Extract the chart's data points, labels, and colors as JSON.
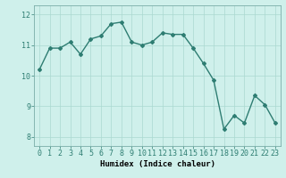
{
  "x": [
    0,
    1,
    2,
    3,
    4,
    5,
    6,
    7,
    8,
    9,
    10,
    11,
    12,
    13,
    14,
    15,
    16,
    17,
    18,
    19,
    20,
    21,
    22,
    23
  ],
  "y": [
    10.2,
    10.9,
    10.9,
    11.1,
    10.7,
    11.2,
    11.3,
    11.7,
    11.75,
    11.1,
    11.0,
    11.1,
    11.4,
    11.35,
    11.35,
    10.9,
    10.4,
    9.85,
    8.25,
    8.7,
    8.45,
    9.35,
    9.05,
    8.45
  ],
  "line_color": "#2e7d72",
  "marker": "D",
  "marker_size": 2,
  "linewidth": 1.0,
  "bg_color": "#cff0eb",
  "grid_color": "#aad8d0",
  "xlabel": "Humidex (Indice chaleur)",
  "xlim": [
    -0.5,
    23.5
  ],
  "ylim": [
    7.7,
    12.3
  ],
  "yticks": [
    8,
    9,
    10,
    11,
    12
  ],
  "xticks": [
    0,
    1,
    2,
    3,
    4,
    5,
    6,
    7,
    8,
    9,
    10,
    11,
    12,
    13,
    14,
    15,
    16,
    17,
    18,
    19,
    20,
    21,
    22,
    23
  ],
  "xlabel_fontsize": 6.5,
  "tick_fontsize": 6.0
}
